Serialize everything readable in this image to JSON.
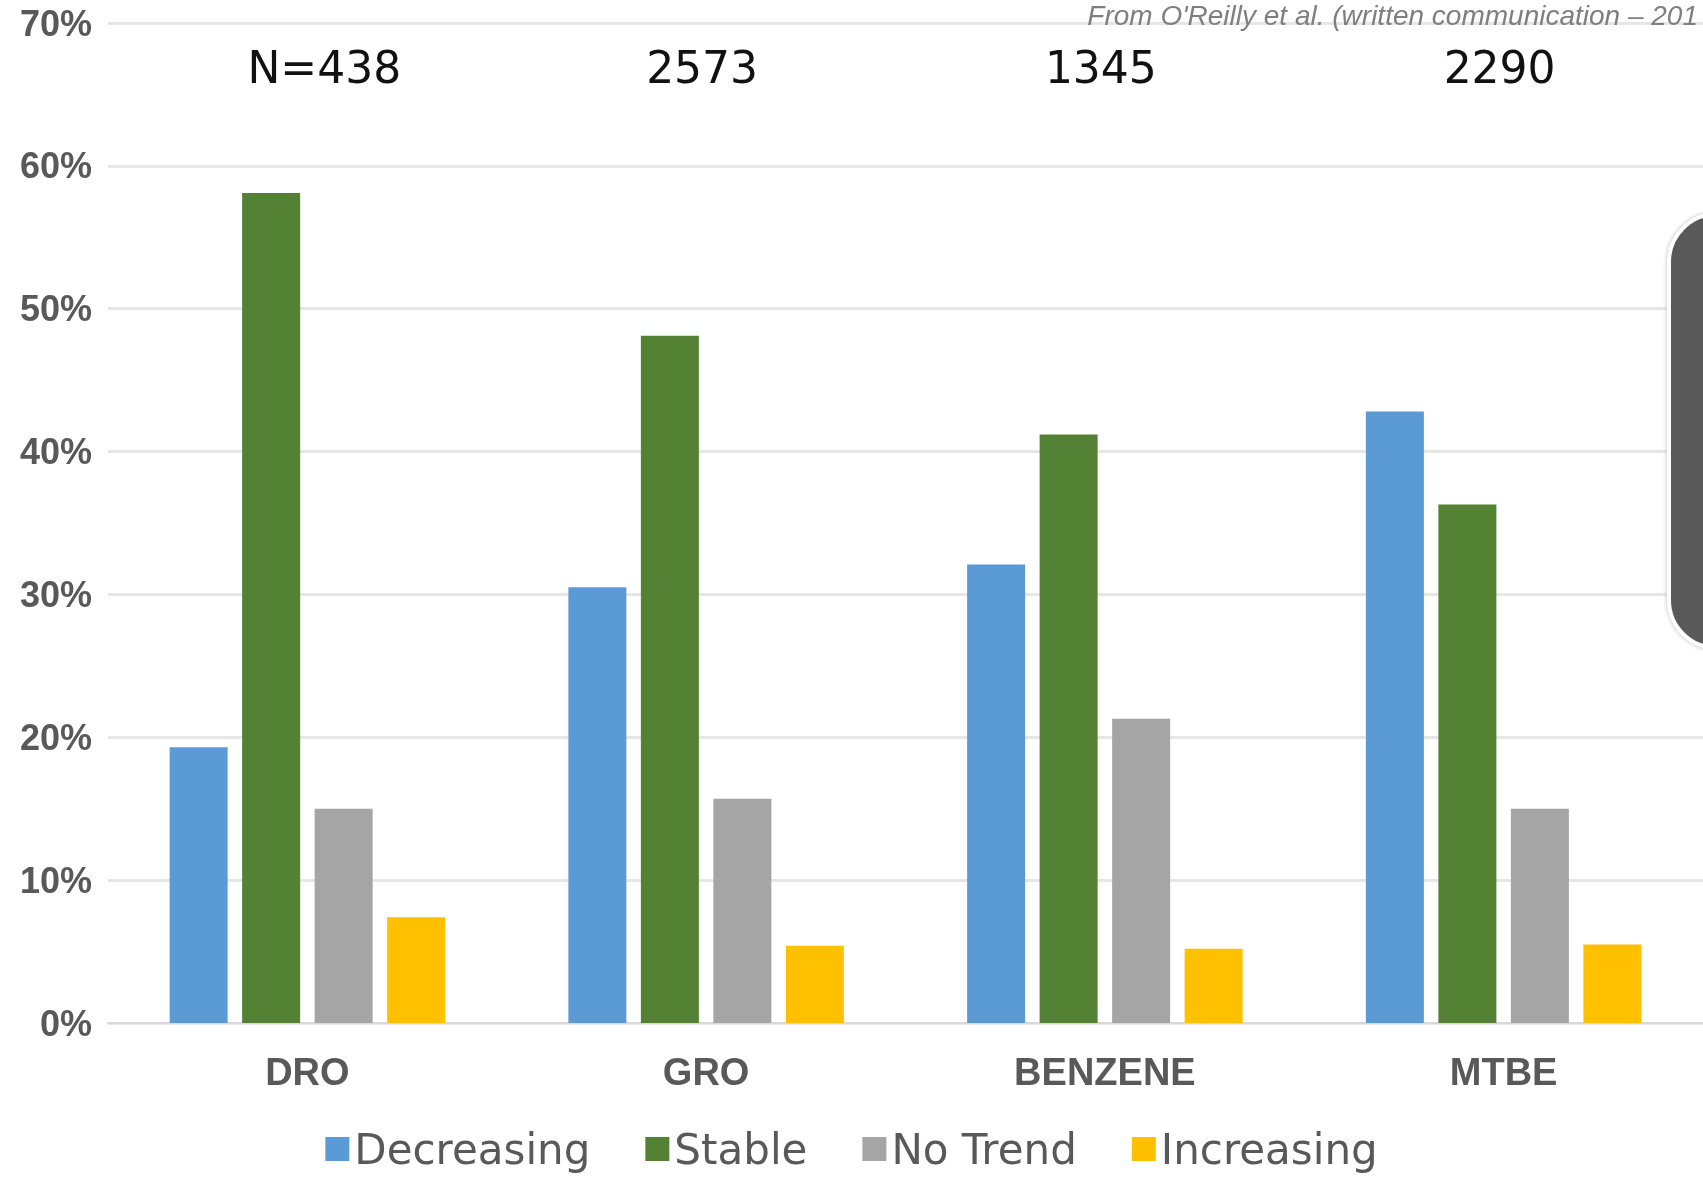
{
  "chart_data": {
    "type": "bar",
    "categories": [
      "DRO",
      "GRO",
      "BENZENE",
      "MTBE"
    ],
    "series": [
      {
        "name": "Decreasing",
        "color": "#5b9bd5",
        "values": [
          19.3,
          30.5,
          32.1,
          42.8
        ]
      },
      {
        "name": "Stable",
        "color": "#548235",
        "values": [
          58.1,
          48.1,
          41.2,
          36.3
        ]
      },
      {
        "name": "No Trend",
        "color": "#a5a5a5",
        "values": [
          15.0,
          15.7,
          21.3,
          15.0
        ]
      },
      {
        "name": "Increasing",
        "color": "#ffc000",
        "values": [
          7.4,
          5.4,
          5.2,
          5.5
        ]
      }
    ],
    "ylim": [
      0,
      70
    ],
    "yticks": [
      {
        "value": 0,
        "label": "0%"
      },
      {
        "value": 10,
        "label": "10%"
      },
      {
        "value": 20,
        "label": "20%"
      },
      {
        "value": 30,
        "label": "30%"
      },
      {
        "value": 40,
        "label": "40%"
      },
      {
        "value": 50,
        "label": "50%"
      },
      {
        "value": 60,
        "label": "60%"
      },
      {
        "value": 70,
        "label": "70%"
      }
    ],
    "grid": "y",
    "legend": "bottom",
    "annotations": [
      "N=438",
      "2573",
      "1345",
      "2290",
      "From O'Reilly et al. (written communication – 201"
    ]
  }
}
